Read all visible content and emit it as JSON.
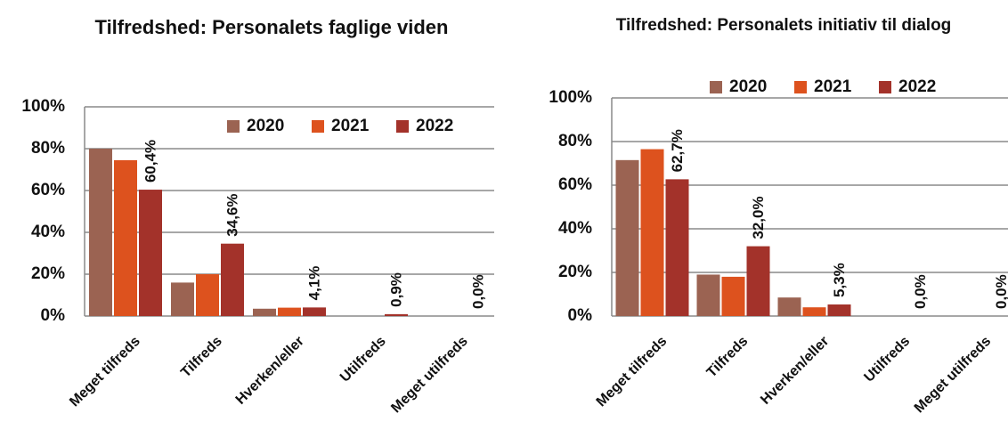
{
  "chart_data": [
    {
      "type": "bar",
      "title": "Tilfredshed: Personalets faglige viden",
      "categories": [
        "Meget tilfreds",
        "Tilfreds",
        "Hverken/eller",
        "Utilfreds",
        "Meget utilfreds"
      ],
      "series": [
        {
          "name": "2020",
          "color": "#9b6352",
          "values": [
            80,
            16,
            3.5,
            0,
            0
          ]
        },
        {
          "name": "2021",
          "color": "#dd521e",
          "values": [
            74.5,
            20,
            4,
            0,
            0
          ]
        },
        {
          "name": "2022",
          "color": "#a3322a",
          "values": [
            60.4,
            34.6,
            4.1,
            0.9,
            0.0
          ],
          "value_labels": [
            "60,4%",
            "34,6%",
            "4,1%",
            "0,9%",
            "0,0%"
          ]
        }
      ],
      "ylim": [
        0,
        100
      ],
      "yticks": [
        {
          "value": 0,
          "label": "0%"
        },
        {
          "value": 20,
          "label": "20%"
        },
        {
          "value": 40,
          "label": "40%"
        },
        {
          "value": 60,
          "label": "60%"
        },
        {
          "value": 80,
          "label": "80%"
        },
        {
          "value": 100,
          "label": "100%"
        }
      ],
      "grid": true,
      "legend": "upper right"
    },
    {
      "type": "bar",
      "title": "Tilfredshed: Personalets initiativ til dialog",
      "categories": [
        "Meget tilfreds",
        "Tilfreds",
        "Hverken/eller",
        "Utilfreds",
        "Meget utilfreds"
      ],
      "series": [
        {
          "name": "2020",
          "color": "#9b6352",
          "values": [
            71.5,
            19,
            8.5,
            0,
            0
          ]
        },
        {
          "name": "2021",
          "color": "#dd521e",
          "values": [
            76.5,
            18,
            4,
            0,
            0
          ]
        },
        {
          "name": "2022",
          "color": "#a3322a",
          "values": [
            62.7,
            32.0,
            5.3,
            0.0,
            0.0
          ],
          "value_labels": [
            "62,7%",
            "32,0%",
            "5,3%",
            "0,0%",
            "0,0%"
          ]
        }
      ],
      "ylim": [
        0,
        100
      ],
      "yticks": [
        {
          "value": 0,
          "label": "0%"
        },
        {
          "value": 20,
          "label": "20%"
        },
        {
          "value": 40,
          "label": "40%"
        },
        {
          "value": 60,
          "label": "60%"
        },
        {
          "value": 80,
          "label": "80%"
        },
        {
          "value": 100,
          "label": "100%"
        }
      ],
      "grid": true,
      "legend": "top"
    }
  ]
}
